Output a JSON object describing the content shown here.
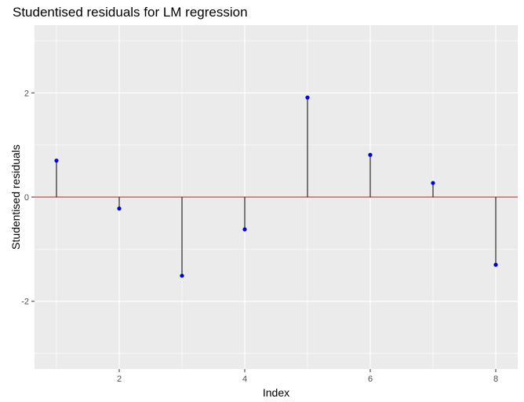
{
  "chart_data": {
    "type": "scatter",
    "style": "stem",
    "title": "Studentised residuals for LM regression",
    "xlabel": "Index",
    "ylabel": "Studentised residuals",
    "x": [
      1,
      2,
      3,
      4,
      5,
      6,
      7,
      8
    ],
    "y": [
      0.7,
      -0.22,
      -1.51,
      -0.62,
      1.91,
      0.81,
      0.27,
      -1.3
    ],
    "xlim": [
      0.65,
      8.35
    ],
    "ylim": [
      -3.3,
      3.3
    ],
    "x_ticks": [
      2,
      4,
      6,
      8
    ],
    "y_ticks": [
      -2,
      0,
      2
    ],
    "reference_line": 0,
    "grid": true,
    "legend": "none",
    "colors": {
      "panel": "#ebebeb",
      "grid": "#ffffff",
      "point": "#0000cd",
      "stem": "#000000",
      "reference": "#b22222"
    }
  }
}
